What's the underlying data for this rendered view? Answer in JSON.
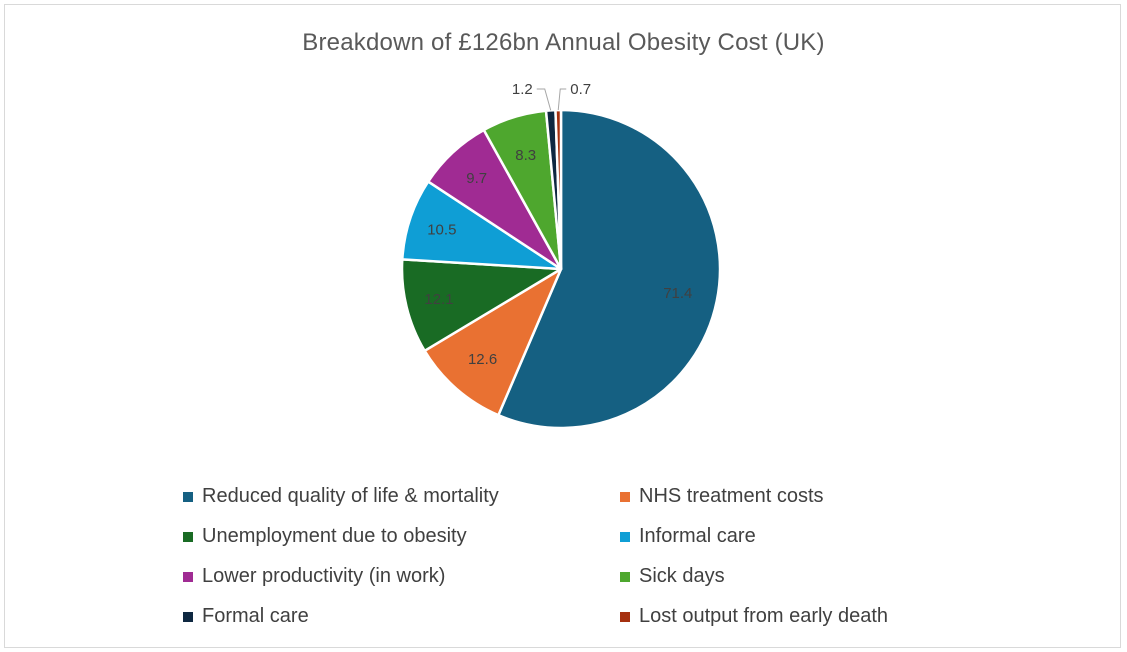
{
  "chart_data": {
    "type": "pie",
    "title": "Breakdown of £126bn Annual Obesity Cost (UK)",
    "legend_position": "bottom",
    "slices": [
      {
        "label": "Reduced quality of life & mortality",
        "value": 71.4,
        "value_label": "71.4",
        "color": "#156082"
      },
      {
        "label": "NHS treatment costs",
        "value": 12.6,
        "value_label": "12.6",
        "color": "#E97132"
      },
      {
        "label": "Unemployment due to obesity",
        "value": 12.1,
        "value_label": "12.1",
        "color": "#196B24"
      },
      {
        "label": "Informal care",
        "value": 10.5,
        "value_label": "10.5",
        "color": "#0F9ED5"
      },
      {
        "label": "Lower productivity (in work)",
        "value": 9.7,
        "value_label": "9.7",
        "color": "#A02B93"
      },
      {
        "label": "Sick days",
        "value": 8.3,
        "value_label": "8.3",
        "color": "#4EA72E"
      },
      {
        "label": "Formal care",
        "value": 1.2,
        "value_label": "1.2",
        "color": "#0E2841"
      },
      {
        "label": "Lost output from early death",
        "value": 0.7,
        "value_label": "0.7",
        "color": "#A5300F"
      }
    ],
    "slice_order": [
      "Reduced quality of life & mortality",
      "NHS treatment costs",
      "Unemployment due to obesity",
      "Informal care",
      "Lower productivity (in work)",
      "Sick days",
      "Formal care",
      "Lost output from early death"
    ]
  }
}
